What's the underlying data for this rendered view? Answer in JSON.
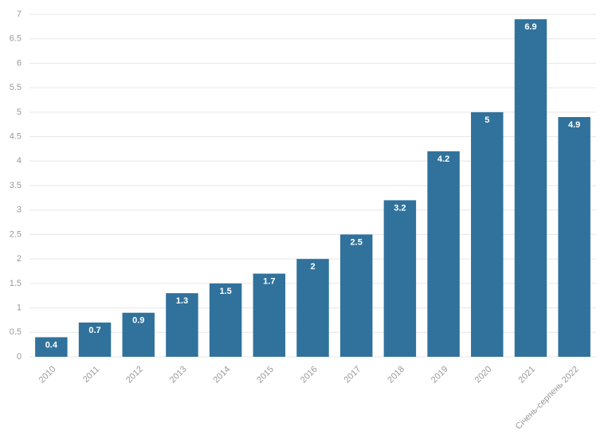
{
  "chart_data": {
    "type": "bar",
    "categories": [
      "2010",
      "2011",
      "2012",
      "2013",
      "2014",
      "2015",
      "2016",
      "2017",
      "2018",
      "2019",
      "2020",
      "2021",
      "Січень-серпень 2022"
    ],
    "values": [
      0.4,
      0.7,
      0.9,
      1.3,
      1.5,
      1.7,
      2,
      2.5,
      3.2,
      4.2,
      5,
      6.9,
      4.9
    ],
    "color": "#30729c",
    "ylim": [
      0,
      7
    ],
    "yticks": [
      0,
      0.5,
      1,
      1.5,
      2,
      2.5,
      3,
      3.5,
      4,
      4.5,
      5,
      5.5,
      6,
      6.5,
      7
    ],
    "grid": true
  }
}
